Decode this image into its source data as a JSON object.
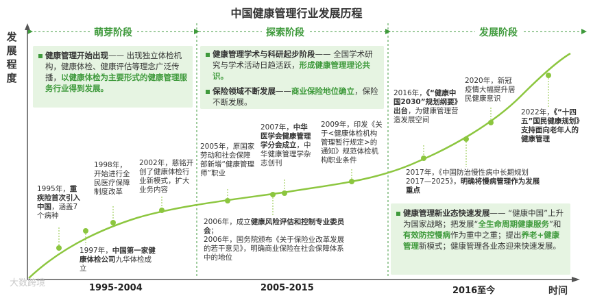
{
  "title": "中国健康管理行业发展历程",
  "yaxis_label": "发展程度",
  "xaxis_label": "时间",
  "watermark": "大数跨境",
  "colors": {
    "green": "#3f9a3c",
    "light_green": "#e6f4e2",
    "line": "#8cc63f"
  },
  "stages": [
    {
      "name": "萌芽阶段",
      "period": "1995-2004",
      "box": {
        "items": [
          {
            "bold": "健康管理开始出现",
            "plain": "—— 出现独立体检机构，健康体检、健康评估等理念广泛传播，",
            "green": "以健康体检为主要形式的健康管理服务行业得到发展。"
          }
        ]
      }
    },
    {
      "name": "探索阶段",
      "period": "2005-2015",
      "box": {
        "items": [
          {
            "bold": "健康管理学术与科研起步阶段",
            "plain": "—— 全国学术研究与学术活动日趋活跃，",
            "green": "形成健康管理理论共识。"
          },
          {
            "bold": "保险领域不断发展",
            "plain_a": "——",
            "green": "商业保险地位确立",
            "plain": "，保险不断发展。"
          }
        ]
      }
    },
    {
      "name": "发展阶段",
      "period": "2016至今",
      "box": {
        "p1_bold": "健康管理新业态快速发展",
        "p1_plain": "—— “健康中国”上升为国家战略；把发展“",
        "p2_green": "全生命周期健康服务",
        "p2_plain": "”和",
        "p3_green": "有效防控慢病",
        "p3_plain": "作为重中之重；提出",
        "p4_green": "养老+健康管理",
        "p4_plain": "新模式；健康管理各业态迎来快速发展。"
      }
    }
  ],
  "events": {
    "e1995": {
      "year": "1995年，",
      "bold": "重疾险首次引入中国",
      "plain": "，涵盖7个病种"
    },
    "e1997": {
      "year": "1997年，",
      "bold": "中国第一家健康体检公司",
      "plain": "九华体检成立"
    },
    "e1998": {
      "year": "1998年，",
      "plain": "开始进行全民医疗保障制度改革"
    },
    "e2002": {
      "year": "2002年，",
      "plain": "慈铭开创了健康体检行业新模式，扩大业务内容"
    },
    "e2005": {
      "year": "2005年，",
      "plain": "原国家劳动和社会保障部新增“健康管理师”职业"
    },
    "e2006a": {
      "year": "2006年，",
      "plain_a": "成立",
      "bold": "健康风险评估和控制专业委员会",
      "plain": "；"
    },
    "e2006b": {
      "year": "2006年，",
      "plain": "国务院颁布《关于保险业改革发展的若干意见》，明确商业保险在社会保障体系中的地位"
    },
    "e2007": {
      "year": "2007年，",
      "bold": "中华医学会健康管理学分会成立",
      "plain": "，中华健康管理学杂志创刊"
    },
    "e2009": {
      "year": "2009年，",
      "plain": "印发《关于<健康体检机构管理暂行规定>的通知》规范体检机构职业条件"
    },
    "e2016": {
      "year": "2016年，",
      "bold": "《“健康中国2030”规划纲要》出台",
      "plain": "，为健康管理营造发展空间"
    },
    "e2017": {
      "year": "2017年，",
      "plain": "《中国防治慢性病中长期规划2017—2025》，",
      "bold": "明确将慢病管理作为发展重点"
    },
    "e2020": {
      "year": "2020年，",
      "plain": "新冠疫情大幅提升居民健康意识"
    },
    "e2022": {
      "year": "2022年，",
      "bold": "《“十四五”国民健康规划》支持面向老年人的健康管理"
    }
  }
}
